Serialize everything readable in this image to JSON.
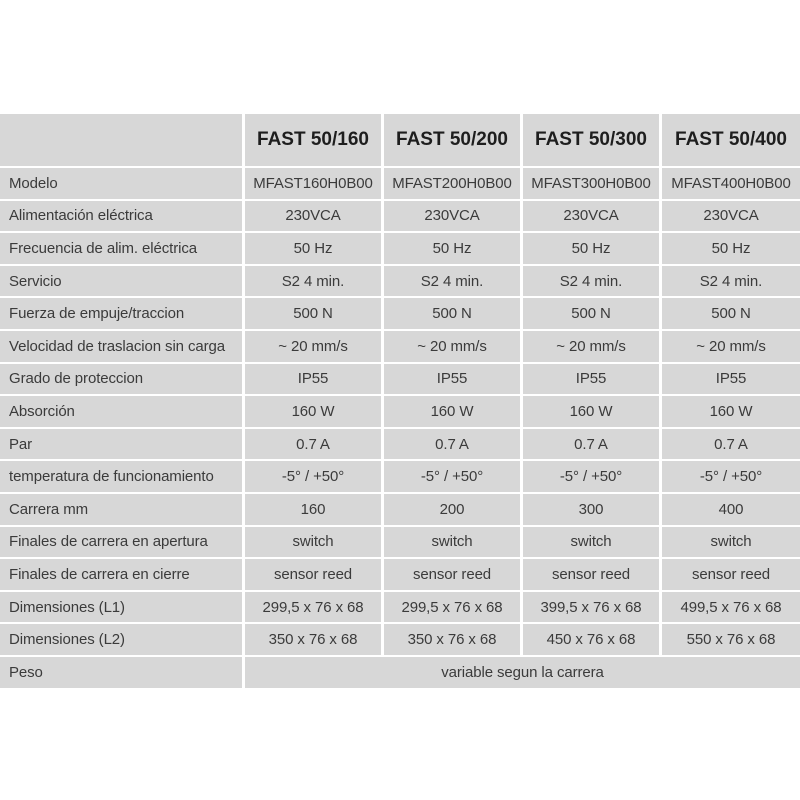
{
  "table": {
    "corner_label": "",
    "columns": [
      "FAST 50/160",
      "FAST 50/200",
      "FAST 50/300",
      "FAST 50/400"
    ],
    "rows": [
      {
        "label": "Modelo",
        "values": [
          "MFAST160H0B00",
          "MFAST200H0B00",
          "MFAST300H0B00",
          "MFAST400H0B00"
        ]
      },
      {
        "label": "Alimentación eléctrica",
        "values": [
          "230VCA",
          "230VCA",
          "230VCA",
          "230VCA"
        ]
      },
      {
        "label": "Frecuencia de alim. eléctrica",
        "values": [
          "50 Hz",
          "50 Hz",
          "50 Hz",
          "50 Hz"
        ]
      },
      {
        "label": "Servicio",
        "values": [
          "S2 4 min.",
          "S2 4 min.",
          "S2 4 min.",
          "S2 4 min."
        ]
      },
      {
        "label": "Fuerza de empuje/traccion",
        "values": [
          "500 N",
          "500 N",
          "500 N",
          "500 N"
        ]
      },
      {
        "label": "Velocidad de traslacion sin carga",
        "values": [
          "~ 20 mm/s",
          "~ 20 mm/s",
          "~ 20 mm/s",
          "~ 20 mm/s"
        ]
      },
      {
        "label": "Grado de proteccion",
        "values": [
          "IP55",
          "IP55",
          "IP55",
          "IP55"
        ]
      },
      {
        "label": "Absorción",
        "values": [
          "160 W",
          "160 W",
          "160 W",
          "160 W"
        ]
      },
      {
        "label": "Par",
        "values": [
          "0.7 A",
          "0.7 A",
          "0.7 A",
          "0.7 A"
        ]
      },
      {
        "label": "temperatura de funcionamiento",
        "values": [
          "-5° / +50°",
          "-5° / +50°",
          "-5° / +50°",
          "-5° / +50°"
        ]
      },
      {
        "label": "Carrera mm",
        "values": [
          "160",
          "200",
          "300",
          "400"
        ]
      },
      {
        "label": "Finales de carrera en apertura",
        "values": [
          "switch",
          "switch",
          "switch",
          "switch"
        ]
      },
      {
        "label": "Finales de carrera en cierre",
        "values": [
          "sensor reed",
          "sensor reed",
          "sensor reed",
          "sensor reed"
        ]
      },
      {
        "label": "Dimensiones (L1)",
        "values": [
          "299,5 x 76 x 68",
          "299,5 x 76 x 68",
          "399,5 x 76 x 68",
          "499,5 x 76 x 68"
        ]
      },
      {
        "label": "Dimensiones (L2)",
        "values": [
          "350 x 76 x 68",
          "350 x 76 x 68",
          "450 x 76 x 68",
          "550 x 76 x 68"
        ]
      }
    ],
    "merged_row": {
      "label": "Peso",
      "value": "variable segun la carrera"
    }
  },
  "colors": {
    "cell_background": "#d7d7d7",
    "gap_lines": "#ffffff",
    "header_text": "#1e1e1e",
    "body_text": "#3b3b3b",
    "page_background": "#ffffff"
  }
}
